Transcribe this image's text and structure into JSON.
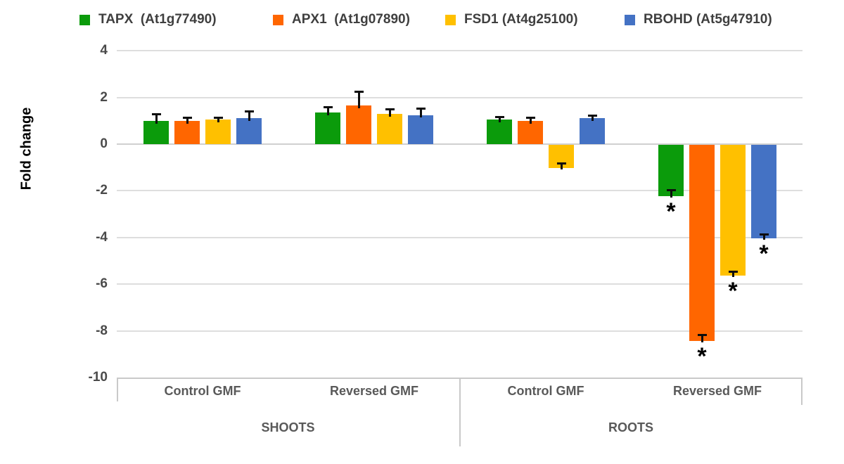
{
  "legend": {
    "items": [
      {
        "label": "TAPX  (At1g77490)",
        "color": "#0b9b0b"
      },
      {
        "label": "APX1  (At1g07890)",
        "color": "#ff6600"
      },
      {
        "label": "FSD1 (At4g25100)",
        "color": "#ffc000"
      },
      {
        "label": "RBOHD (At5g47910)",
        "color": "#4472c4"
      }
    ]
  },
  "y_axis": {
    "title": "Fold change",
    "tick_labels": [
      "4",
      "2",
      "0",
      "-2",
      "-4",
      "-6",
      "-8",
      "-10"
    ],
    "tick_values": [
      4,
      2,
      0,
      -2,
      -4,
      -6,
      -8,
      -10
    ]
  },
  "x_axis": {
    "group_labels": [
      "Control GMF",
      "Reversed GMF",
      "Control GMF",
      "Reversed GMF"
    ],
    "section_labels": [
      "SHOOTS",
      "ROOTS"
    ]
  },
  "chart_data": {
    "type": "bar",
    "title": "",
    "xlabel": "",
    "ylabel": "Fold change",
    "ylim": [
      -10,
      4
    ],
    "grid": true,
    "legend_position": "top",
    "significance_marker": "*",
    "series": [
      {
        "name": "TAPX (At1g77490)",
        "color": "#0b9b0b"
      },
      {
        "name": "APX1 (At1g07890)",
        "color": "#ff6600"
      },
      {
        "name": "FSD1 (At4g25100)",
        "color": "#ffc000"
      },
      {
        "name": "RBOHD (At5g47910)",
        "color": "#4472c4"
      }
    ],
    "groups": [
      {
        "section": "SHOOTS",
        "condition": "Control GMF",
        "values": [
          1.0,
          1.0,
          1.05,
          1.1
        ],
        "errors": [
          0.3,
          0.15,
          0.1,
          0.33
        ],
        "significant": [
          false,
          false,
          false,
          false
        ]
      },
      {
        "section": "SHOOTS",
        "condition": "Reversed GMF",
        "values": [
          1.35,
          1.65,
          1.3,
          1.25
        ],
        "errors": [
          0.25,
          0.6,
          0.2,
          0.3
        ],
        "significant": [
          false,
          false,
          false,
          false
        ]
      },
      {
        "section": "ROOTS",
        "condition": "Control GMF",
        "values": [
          1.05,
          1.0,
          -1.0,
          1.1
        ],
        "errors": [
          0.12,
          0.15,
          0.18,
          0.12
        ],
        "significant": [
          false,
          false,
          false,
          false
        ]
      },
      {
        "section": "ROOTS",
        "condition": "Reversed GMF",
        "values": [
          -2.2,
          -8.4,
          -5.6,
          -4.0
        ],
        "errors": [
          0.25,
          0.25,
          0.15,
          0.15
        ],
        "significant": [
          true,
          true,
          true,
          true
        ]
      }
    ]
  }
}
